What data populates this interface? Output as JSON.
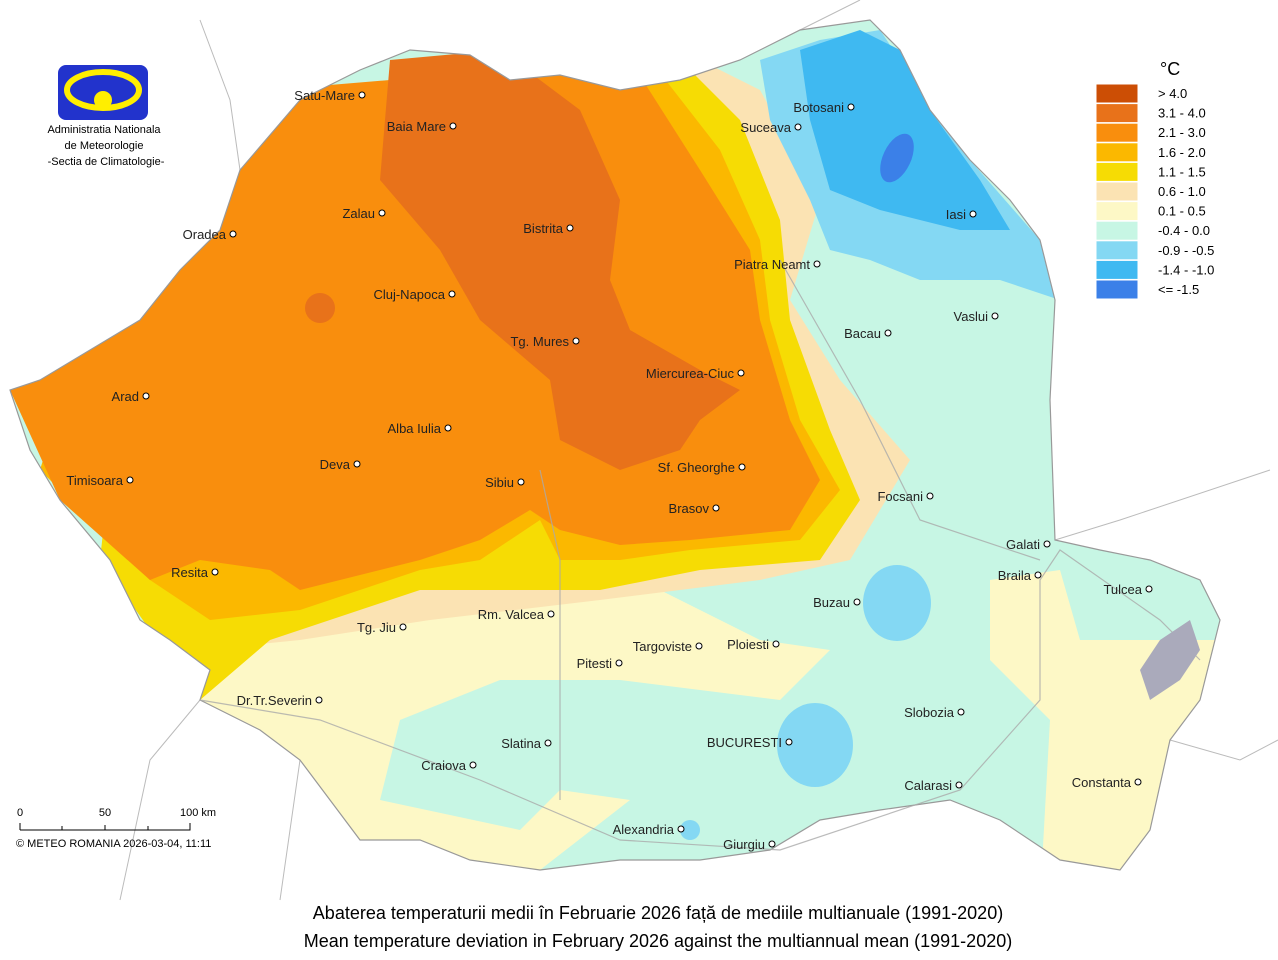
{
  "header": {
    "logo_lines": [
      "Administratia Nationala",
      "de Meteorologie",
      "-Sectia de Climatologie-"
    ]
  },
  "legend": {
    "unit": "°C",
    "items": [
      {
        "label": "> 4.0",
        "color": "#cc4e05"
      },
      {
        "label": "3.1 - 4.0",
        "color": "#e8721a"
      },
      {
        "label": "2.1 - 3.0",
        "color": "#f98e0d"
      },
      {
        "label": "1.6 - 2.0",
        "color": "#fbb800"
      },
      {
        "label": "1.1 - 1.5",
        "color": "#f6dc04"
      },
      {
        "label": "0.6 - 1.0",
        "color": "#fbe3b3"
      },
      {
        "label": "0.1 - 0.5",
        "color": "#fdf8c6"
      },
      {
        "label": "-0.4 - 0.0",
        "color": "#c7f6e4"
      },
      {
        "label": "-0.9 - -0.5",
        "color": "#84d8f3"
      },
      {
        "label": "-1.4 - -1.0",
        "color": "#3fb9f1"
      },
      {
        "label": "<= -1.5",
        "color": "#3b80e8"
      }
    ]
  },
  "cities": [
    {
      "name": "Satu-Mare"
    },
    {
      "name": "Baia Mare"
    },
    {
      "name": "Zalau"
    },
    {
      "name": "Oradea"
    },
    {
      "name": "Bistrita"
    },
    {
      "name": "Cluj-Napoca"
    },
    {
      "name": "Tg. Mures"
    },
    {
      "name": "Miercurea-Ciuc"
    },
    {
      "name": "Arad"
    },
    {
      "name": "Alba Iulia"
    },
    {
      "name": "Deva"
    },
    {
      "name": "Sibiu"
    },
    {
      "name": "Sf. Gheorghe"
    },
    {
      "name": "Timisoara"
    },
    {
      "name": "Brasov"
    },
    {
      "name": "Resita"
    },
    {
      "name": "Rm. Valcea"
    },
    {
      "name": "Tg. Jiu"
    },
    {
      "name": "Targoviste"
    },
    {
      "name": "Ploiesti"
    },
    {
      "name": "Pitesti"
    },
    {
      "name": "Dr.Tr.Severin"
    },
    {
      "name": "Slatina"
    },
    {
      "name": "BUCURESTI"
    },
    {
      "name": "Craiova"
    },
    {
      "name": "Alexandria"
    },
    {
      "name": "Giurgiu"
    },
    {
      "name": "Botosani"
    },
    {
      "name": "Suceava"
    },
    {
      "name": "Iasi"
    },
    {
      "name": "Piatra Neamt"
    },
    {
      "name": "Vaslui"
    },
    {
      "name": "Bacau"
    },
    {
      "name": "Focsani"
    },
    {
      "name": "Galati"
    },
    {
      "name": "Braila"
    },
    {
      "name": "Tulcea"
    },
    {
      "name": "Buzau"
    },
    {
      "name": "Slobozia"
    },
    {
      "name": "Calarasi"
    },
    {
      "name": "Constanta"
    }
  ],
  "scale": {
    "labels": [
      "0",
      "50",
      "100 km"
    ],
    "copyright": "© METEO ROMANIA 2026-03-04, 11:11"
  },
  "caption": {
    "line_ro": "Abaterea temperaturii medii în  Februarie 2026  față de mediile multianuale (1991-2020)",
    "line_en": "Mean temperature deviation in  February 2026  against the multiannual mean (1991-2020)"
  }
}
